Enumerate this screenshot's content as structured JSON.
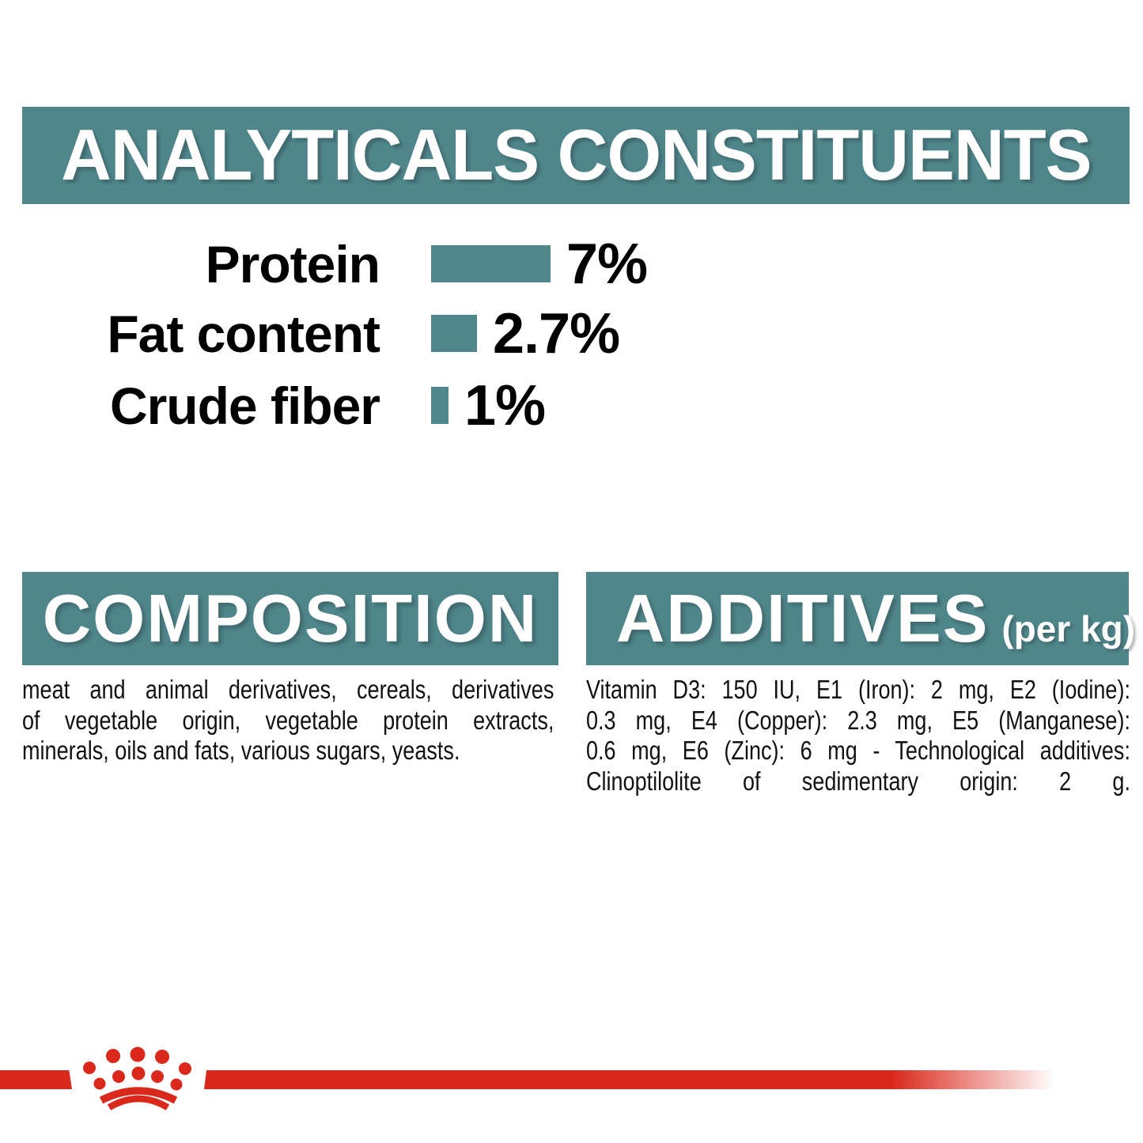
{
  "header": {
    "title": "ANALYTICALS CONSTITUENTS"
  },
  "chart_data": {
    "type": "bar",
    "orientation": "horizontal",
    "title": "ANALYTICALS CONSTITUENTS",
    "categories": [
      "Protein",
      "Fat content",
      "Crude fiber"
    ],
    "values": [
      7,
      2.7,
      1
    ],
    "value_labels": [
      "7%",
      "2.7%",
      "1%"
    ],
    "xlim": [
      0,
      7
    ],
    "bar_color": "#4f878d",
    "grid": "off",
    "legend": "none"
  },
  "composition": {
    "title": "COMPOSITION",
    "lines": [
      "meat and animal derivatives, cereals, derivatives",
      "of vegetable origin, vegetable protein extracts,",
      "minerals, oils and fats, various sugars, yeasts."
    ],
    "justify_last_line": false
  },
  "additives": {
    "title": "ADDITIVES",
    "title_suffix": "(per kg)",
    "lines": [
      "Vitamin D3: 150 IU, E1 (Iron): 2 mg, E2 (Iodine):",
      "0.3 mg, E4 (Copper): 2.3 mg, E5 (Manganese):",
      "0.6 mg, E6 (Zinc): 6 mg - Technological additives:",
      "Clinoptilolite of sedimentary origin: 2 g."
    ],
    "justify_last_line": true
  },
  "brand": {
    "logo": "royal-canin-crown",
    "accent_red": "#da291c",
    "teal": "#4e868b"
  }
}
